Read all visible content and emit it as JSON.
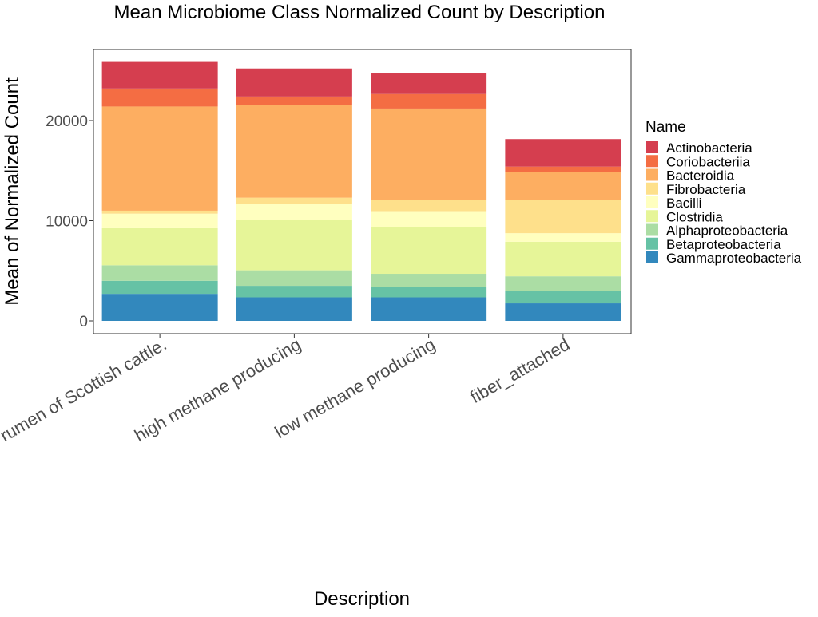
{
  "chart_data": {
    "type": "bar",
    "stacked": true,
    "title": "Mean Microbiome Class Normalized Count by Description",
    "xlabel": "Description",
    "ylabel": "Mean of Normalized Count",
    "ylim": [
      0,
      27000
    ],
    "yticks": [
      0,
      10000,
      20000
    ],
    "ytick_labels": [
      "0",
      "10000",
      "20000"
    ],
    "grid": false,
    "legend_title": "Name",
    "legend_position": "right",
    "categories": [
      "...the rumen of Scottish cattle.",
      "high methane producing",
      "low methane producing",
      "fiber_attached"
    ],
    "series": [
      {
        "name": "Gammaproteobacteria",
        "color": "#3288bd",
        "values": [
          2700,
          2350,
          2350,
          1750
        ]
      },
      {
        "name": "Betaproteobacteria",
        "color": "#66c2a5",
        "values": [
          1300,
          1150,
          1000,
          1250
        ]
      },
      {
        "name": "Alphaproteobacteria",
        "color": "#abdda4",
        "values": [
          1550,
          1550,
          1350,
          1450
        ]
      },
      {
        "name": "Clostridia",
        "color": "#e6f598",
        "values": [
          3700,
          5000,
          4700,
          3450
        ]
      },
      {
        "name": "Bacilli",
        "color": "#ffffbf",
        "values": [
          1450,
          1650,
          1550,
          850
        ]
      },
      {
        "name": "Fibrobacteria",
        "color": "#fee08b",
        "values": [
          300,
          600,
          1100,
          3350
        ]
      },
      {
        "name": "Bacteroidia",
        "color": "#fdae61",
        "values": [
          10400,
          9250,
          9150,
          2750
        ]
      },
      {
        "name": "Coriobacteriia",
        "color": "#f46d43",
        "values": [
          1800,
          850,
          1450,
          550
        ]
      },
      {
        "name": "Actinobacteria",
        "color": "#d53e4f",
        "values": [
          2650,
          2800,
          2050,
          2750
        ]
      }
    ],
    "legend_order": [
      "Actinobacteria",
      "Coriobacteriia",
      "Bacteroidia",
      "Fibrobacteria",
      "Bacilli",
      "Clostridia",
      "Alphaproteobacteria",
      "Betaproteobacteria",
      "Gammaproteobacteria"
    ]
  }
}
